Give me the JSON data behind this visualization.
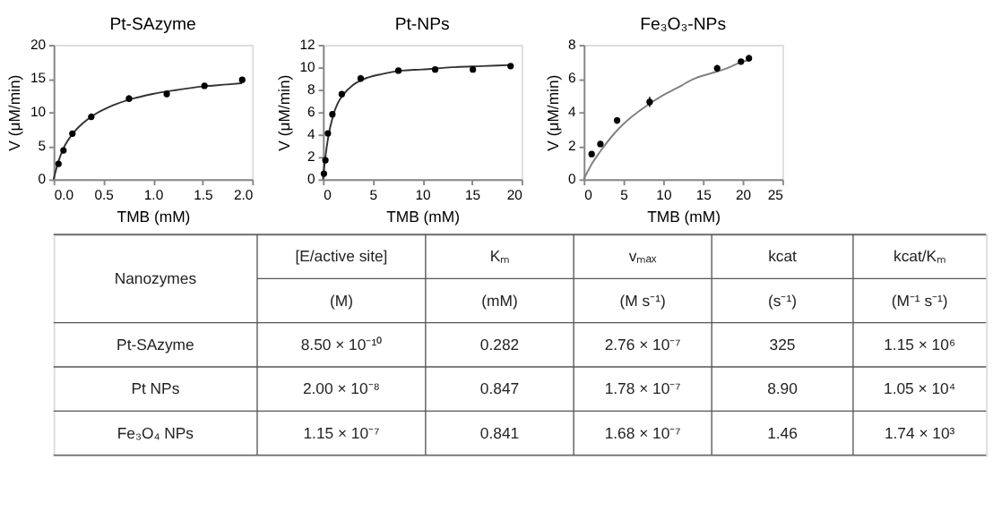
{
  "chart_data": [
    {
      "type": "scatter",
      "title": "Pt-SAzyme",
      "xlabel": "TMB (mM)",
      "ylabel": "V (μM/min)",
      "xlim": [
        0,
        2
      ],
      "ylim": [
        0,
        20
      ],
      "xticks": [
        {
          "value": 0,
          "label": "0.0"
        },
        0.5,
        {
          "value": 1,
          "label": "1.0"
        },
        1.5,
        {
          "value": 2,
          "label": "2.0"
        }
      ],
      "yticks": [
        0,
        5,
        10,
        15,
        20
      ],
      "grid": false,
      "series": [
        {
          "type": "line",
          "color": "#333333",
          "x": [
            0,
            0.05,
            0.1,
            0.2,
            0.3,
            0.4,
            0.6,
            0.8,
            1.0,
            1.25,
            1.5,
            1.75,
            1.9
          ],
          "values": [
            0,
            2.7,
            4.6,
            6.9,
            8.4,
            9.5,
            11.0,
            12.0,
            12.7,
            13.3,
            13.8,
            14.1,
            14.3
          ]
        },
        {
          "type": "scatter",
          "color": "#000000",
          "marker": "circle",
          "x": [
            0.05,
            0.1,
            0.19,
            0.38,
            0.76,
            1.14,
            1.52,
            1.9
          ],
          "values": [
            2.3,
            4.3,
            6.8,
            9.3,
            12.0,
            12.7,
            13.9,
            14.8
          ],
          "errors": [
            0.2,
            0.2,
            0.2,
            0.5,
            0.5,
            0.5,
            0.3,
            0.3
          ]
        }
      ]
    },
    {
      "type": "scatter",
      "title": "Pt-NPs",
      "xlabel": "TMB (mM)",
      "ylabel": "V (μM/min)",
      "xlim": [
        0,
        20
      ],
      "ylim": [
        0,
        12
      ],
      "xticks": [
        0,
        5,
        10,
        15,
        20
      ],
      "yticks": [
        0,
        2,
        4,
        6,
        8,
        10,
        12
      ],
      "grid": false,
      "series": [
        {
          "type": "line",
          "color": "#333333",
          "x": [
            0,
            0.25,
            0.5,
            1,
            1.5,
            2,
            3,
            4,
            6,
            8,
            10,
            13,
            16,
            19
          ],
          "values": [
            0,
            2.0,
            3.6,
            5.6,
            6.8,
            7.5,
            8.4,
            8.9,
            9.4,
            9.7,
            9.8,
            10.0,
            10.1,
            10.2
          ]
        },
        {
          "type": "scatter",
          "color": "#000000",
          "marker": "circle",
          "x": [
            0.1,
            0.25,
            0.5,
            0.95,
            1.9,
            3.8,
            7.6,
            11.3,
            15.1,
            18.9
          ],
          "values": [
            0.5,
            1.7,
            4.1,
            5.8,
            7.6,
            9.0,
            9.7,
            9.8,
            9.8,
            10.1
          ],
          "errors": [
            0.1,
            0.1,
            0.2,
            0.1,
            0.2,
            0.3,
            0.2,
            0.1,
            0.1,
            0.2
          ]
        }
      ]
    },
    {
      "type": "scatter",
      "title": "Fe₃O₃-NPs",
      "xlabel": "TMB (mM)",
      "ylabel": "V (μM/min)",
      "xlim": [
        0,
        25
      ],
      "ylim": [
        0,
        8
      ],
      "xticks": [
        0,
        5,
        10,
        15,
        20,
        25
      ],
      "yticks": [
        0,
        2,
        4,
        6,
        8
      ],
      "grid": false,
      "series": [
        {
          "type": "line",
          "color": "#808080",
          "x": [
            0,
            1,
            2,
            4,
            6,
            8,
            10,
            12,
            14,
            16,
            18,
            20,
            21
          ],
          "values": [
            0,
            0.9,
            1.6,
            2.8,
            3.7,
            4.4,
            5.0,
            5.5,
            6.0,
            6.3,
            6.6,
            7.0,
            7.1
          ]
        },
        {
          "type": "scatter",
          "color": "#000000",
          "marker": "circle",
          "x": [
            1,
            2.1,
            4.2,
            8.3,
            16.8,
            19.8,
            20.8
          ],
          "values": [
            1.5,
            2.1,
            3.5,
            4.6,
            6.6,
            7.0,
            7.2
          ],
          "errors": [
            0.1,
            0.1,
            0.2,
            0.3,
            0.2,
            0.1,
            0.2
          ]
        }
      ]
    },
    {
      "type": "other",
      "annotations": [
        "Nanozymes",
        "[E/active site]",
        "Kₘ",
        "vₘₐₓ",
        "kcat",
        "kcat/Kₘ",
        "(M)",
        "(mM)",
        "(M s⁻¹)",
        "(s⁻¹)",
        "(M⁻¹ s⁻¹)",
        "Pt-SAzyme",
        "8.50 × 10⁻¹⁰",
        "0.282",
        "2.76 × 10⁻⁷",
        "325",
        "1.15 × 10⁶",
        "Pt NPs",
        "2.00 × 10⁻⁸",
        "0.847",
        "1.78 × 10⁻⁷",
        "8.90",
        "1.05 × 10⁴",
        "Fe₃O₄ NPs",
        "1.15 × 10⁻⁷",
        "0.841",
        "1.68 × 10⁻⁷",
        "1.46",
        "1.74 × 10³"
      ]
    }
  ]
}
